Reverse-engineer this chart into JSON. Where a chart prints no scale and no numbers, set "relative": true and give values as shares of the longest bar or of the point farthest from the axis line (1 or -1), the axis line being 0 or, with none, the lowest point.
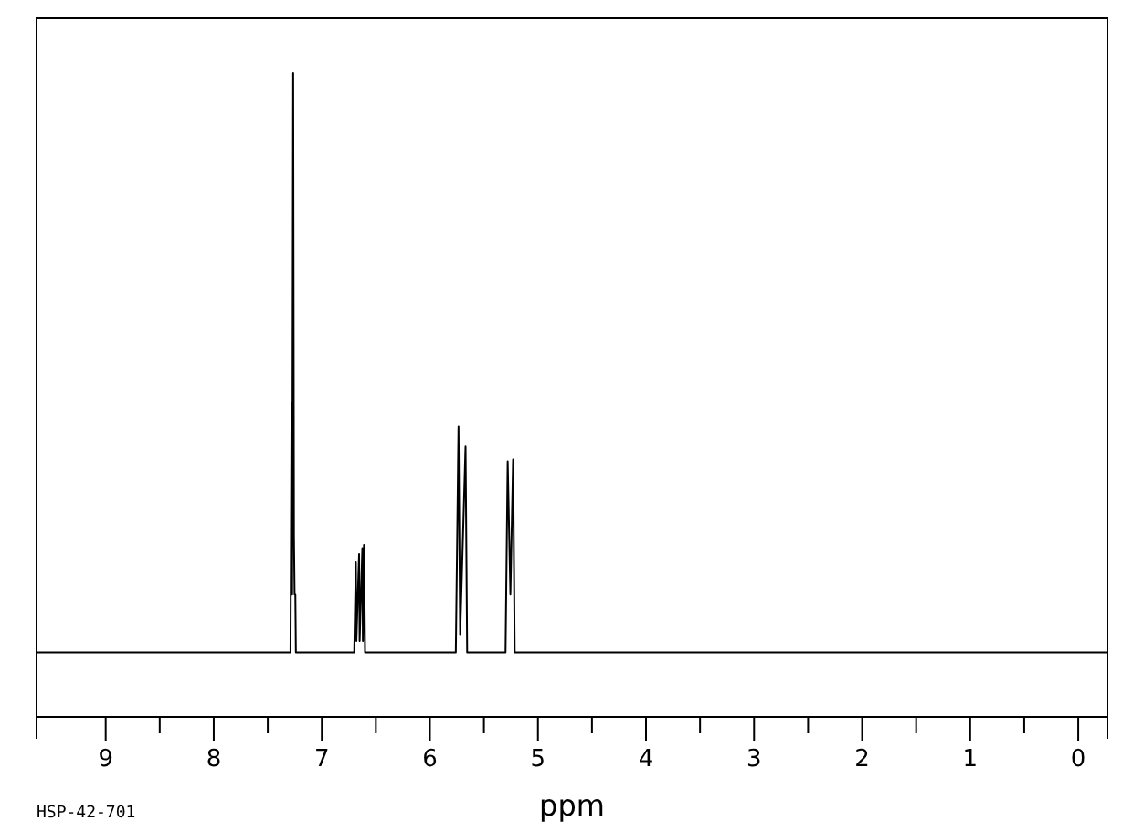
{
  "chart_data": {
    "type": "line",
    "relative": true,
    "xlabel": "ppm",
    "annotations": [
      "HSP-42-701"
    ],
    "xlim": [
      9.64,
      -0.27
    ],
    "xticks": [
      9,
      {
        "value": 8.5,
        "label": null
      },
      8,
      {
        "value": 7.5,
        "label": null
      },
      7,
      {
        "value": 6.5,
        "label": null
      },
      6,
      {
        "value": 5.5,
        "label": null
      },
      5,
      {
        "value": 4.5,
        "label": null
      },
      4,
      {
        "value": 3.5,
        "label": null
      },
      3,
      {
        "value": 2.5,
        "label": null
      },
      2,
      {
        "value": 1.5,
        "label": null
      },
      1,
      {
        "value": 0.5,
        "label": null
      },
      0
    ],
    "line_style": "solid",
    "series": [
      {
        "color": "#000000",
        "x": [
          9.64,
          7.29,
          7.28,
          7.275,
          7.265,
          7.258,
          7.252,
          7.245,
          7.24,
          6.7,
          6.685,
          6.68,
          6.655,
          6.65,
          6.625,
          6.62,
          6.61,
          6.6,
          5.76,
          5.735,
          5.72,
          5.67,
          5.655,
          5.3,
          5.28,
          5.255,
          5.23,
          5.215,
          -0.27
        ],
        "values": [
          0.1,
          0.1,
          0.487,
          0.19,
          1.0,
          0.28,
          0.19,
          0.19,
          0.1,
          0.1,
          0.24,
          0.118,
          0.253,
          0.118,
          0.262,
          0.118,
          0.267,
          0.1,
          0.1,
          0.451,
          0.127,
          0.42,
          0.1,
          0.1,
          0.397,
          0.19,
          0.4,
          0.1,
          0.1
        ]
      }
    ]
  }
}
